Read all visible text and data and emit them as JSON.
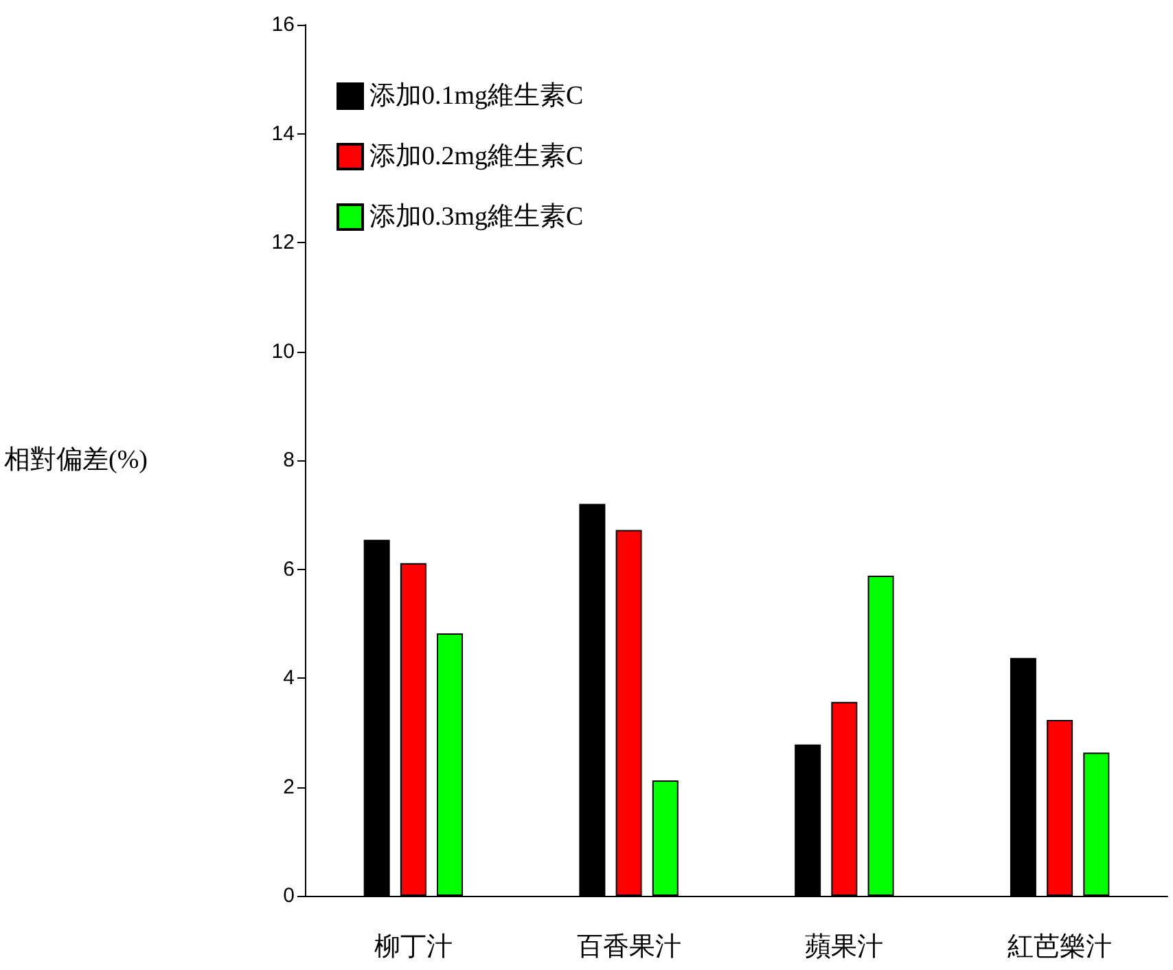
{
  "chart_data": {
    "type": "bar",
    "ylabel": "相對偏差(%)",
    "categories": [
      "柳丁汁",
      "百香果汁",
      "蘋果汁",
      "紅芭樂汁"
    ],
    "series": [
      {
        "name": "添加0.1mg維生素C",
        "color": "#000000",
        "values": [
          6.54,
          7.2,
          2.78,
          4.37
        ]
      },
      {
        "name": "添加0.2mg維生素C",
        "color": "#ff0000",
        "values": [
          6.11,
          6.72,
          3.56,
          3.23
        ]
      },
      {
        "name": "添加0.3mg維生素C",
        "color": "#00ff00",
        "values": [
          4.82,
          2.12,
          5.88,
          2.63
        ]
      }
    ],
    "ylim": [
      0,
      16
    ],
    "yticks": [
      0,
      2,
      4,
      6,
      8,
      10,
      12,
      14,
      16
    ],
    "legend": "top left"
  }
}
